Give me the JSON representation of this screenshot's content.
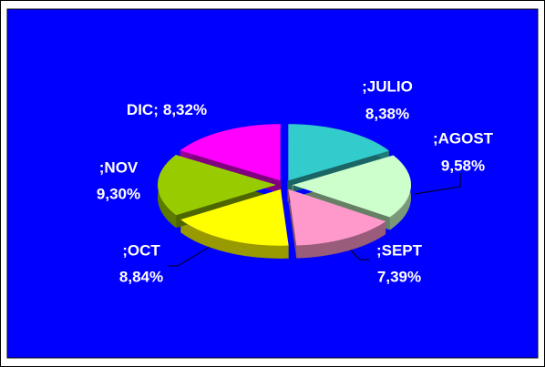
{
  "chart_data": {
    "type": "pie",
    "categories": [
      ";JULIO",
      ";AGOST",
      ";SEPT",
      ";OCT",
      ";NOV",
      "DIC;"
    ],
    "values": [
      8.38,
      9.58,
      7.39,
      8.84,
      9.3,
      8.32
    ],
    "value_labels": [
      "8,38%",
      "9,58%",
      "7,39%",
      "8,84%",
      "9,30%",
      "8,32%"
    ],
    "colors": [
      "#33cccc",
      "#ccffcc",
      "#ff99cc",
      "#ffff00",
      "#99cc00",
      "#ff00ff"
    ],
    "background": "#0000ff"
  }
}
